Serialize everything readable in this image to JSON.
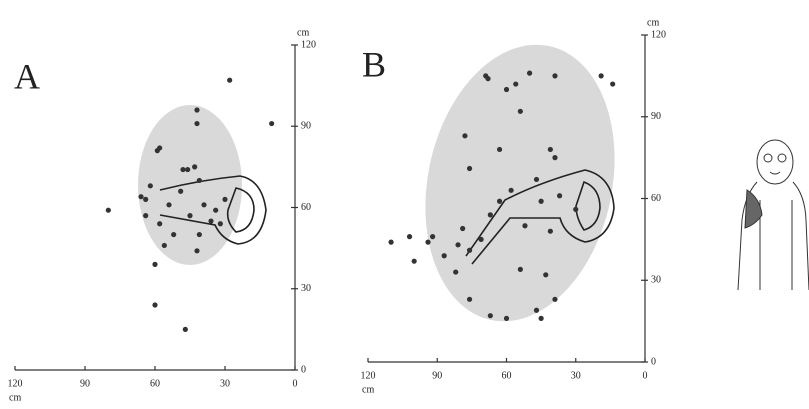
{
  "chart_data": [
    {
      "type": "scatter",
      "title": "A",
      "xlabel": "cm",
      "ylabel": "cm",
      "color": "#333",
      "xlim": [
        120,
        0
      ],
      "ylim": [
        0,
        120
      ],
      "xticks": [
        120,
        90,
        60,
        30,
        0
      ],
      "yticks": [
        0,
        30,
        60,
        90,
        120
      ],
      "x": [
        28,
        10,
        42,
        42,
        80,
        59,
        58,
        60,
        60,
        47,
        42,
        56,
        66,
        64,
        58,
        62,
        48,
        46,
        43,
        41,
        49,
        54,
        39,
        34,
        36,
        32,
        45,
        52,
        41,
        30,
        64
      ],
      "y": [
        107,
        91,
        96,
        91,
        59,
        81,
        82,
        39,
        24,
        15,
        44,
        46,
        64,
        63,
        54,
        68,
        74,
        74,
        75,
        70,
        66,
        61,
        61,
        59,
        55,
        54,
        57,
        50,
        50,
        63,
        57
      ]
    },
    {
      "type": "scatter",
      "title": "B",
      "xlabel": "cm",
      "ylabel": "cm",
      "color": "#333",
      "xlim": [
        120,
        0
      ],
      "ylim": [
        0,
        120
      ],
      "xticks": [
        120,
        90,
        60,
        30,
        0
      ],
      "yticks": [
        0,
        30,
        60,
        90,
        120
      ],
      "x": [
        110,
        102,
        100,
        94,
        92,
        87,
        82,
        81,
        79,
        76,
        71,
        69,
        68,
        60,
        56,
        50,
        39,
        19,
        14,
        78,
        76,
        63,
        54,
        41,
        39,
        47,
        63,
        67,
        58,
        45,
        37,
        30,
        52,
        41,
        67,
        60,
        47,
        45,
        54,
        43,
        39,
        76
      ],
      "y": [
        44,
        46,
        37,
        44,
        46,
        39,
        33,
        43,
        49,
        41,
        45,
        105,
        104,
        100,
        102,
        106,
        105,
        105,
        102,
        83,
        71,
        78,
        92,
        78,
        75,
        67,
        59,
        54,
        63,
        59,
        61,
        56,
        50,
        48,
        17,
        16,
        19,
        16,
        34,
        32,
        23,
        23
      ]
    }
  ]
}
